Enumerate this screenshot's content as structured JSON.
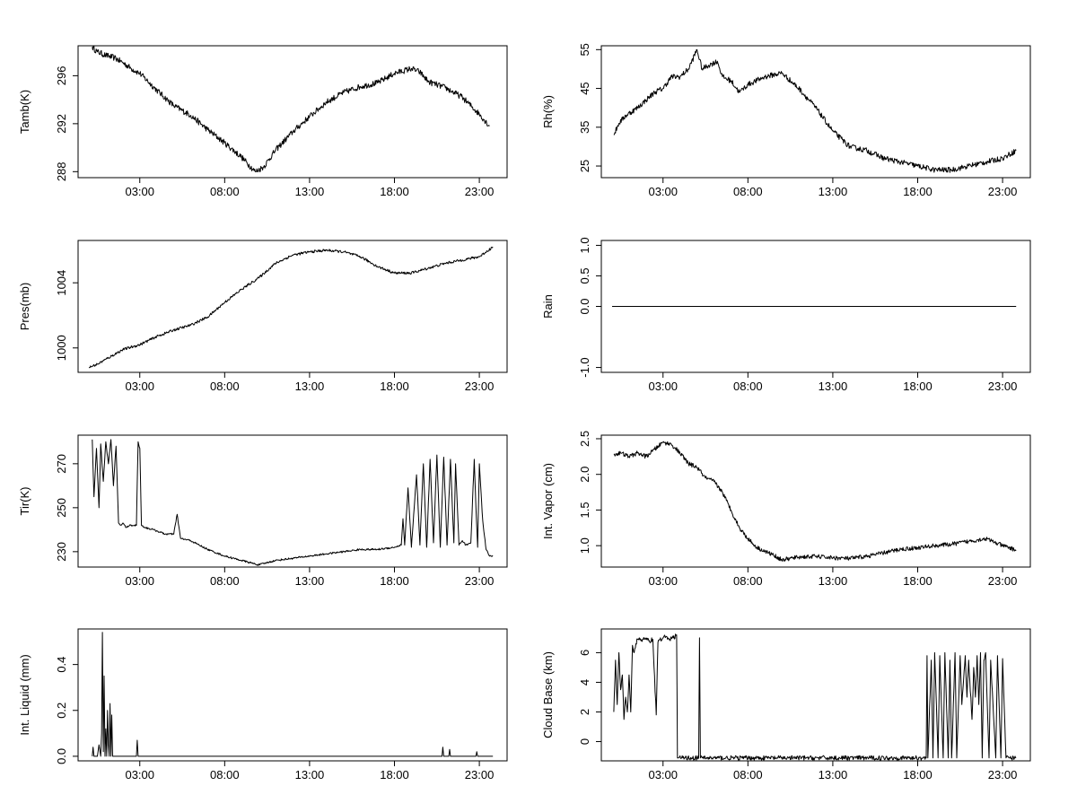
{
  "chart_data": [
    {
      "id": "tamb",
      "type": "line",
      "ylabel": "Tamb(K)",
      "xlabel": "",
      "xlim": [
        0,
        24
      ],
      "ylim": [
        287.5,
        298.5
      ],
      "xticks": [
        3,
        8,
        13,
        18,
        23
      ],
      "xtick_labels": [
        "03:00",
        "08:00",
        "13:00",
        "18:00",
        "23:00"
      ],
      "yticks": [
        288,
        292,
        296
      ],
      "ytick_labels": [
        "288",
        "292",
        "296"
      ],
      "noise": 0.25,
      "series": [
        {
          "name": "Tamb",
          "x": [
            0.2,
            0.5,
            1.0,
            1.5,
            2.0,
            2.5,
            3.0,
            4.0,
            5.0,
            6.0,
            7.0,
            8.0,
            9.0,
            9.8,
            10.3,
            11.0,
            12.0,
            13.0,
            14.0,
            15.0,
            16.0,
            17.0,
            18.0,
            19.0,
            19.5,
            20.0,
            21.0,
            22.0,
            23.0,
            23.6
          ],
          "y": [
            298.4,
            298.0,
            297.7,
            297.5,
            297.1,
            296.6,
            296.2,
            294.8,
            293.5,
            292.7,
            291.5,
            290.4,
            289.2,
            288.0,
            288.4,
            289.8,
            291.3,
            292.6,
            293.8,
            294.6,
            295.1,
            295.4,
            296.2,
            296.6,
            296.3,
            295.5,
            295.0,
            294.2,
            292.8,
            291.8
          ]
        }
      ]
    },
    {
      "id": "rh",
      "type": "line",
      "ylabel": "Rh(%)",
      "xlabel": "",
      "xlim": [
        0,
        24
      ],
      "ylim": [
        22,
        56
      ],
      "xticks": [
        3,
        8,
        13,
        18,
        23
      ],
      "xtick_labels": [
        "03:00",
        "08:00",
        "13:00",
        "18:00",
        "23:00"
      ],
      "yticks": [
        25,
        35,
        45,
        55
      ],
      "ytick_labels": [
        "25",
        "35",
        "45",
        "55"
      ],
      "noise": 0.7,
      "series": [
        {
          "name": "Rh",
          "x": [
            0.1,
            0.4,
            0.8,
            1.5,
            2.0,
            2.5,
            3.0,
            3.5,
            4.0,
            4.5,
            5.0,
            5.3,
            5.7,
            6.2,
            6.5,
            7.0,
            7.5,
            8.0,
            9.0,
            10.0,
            11.0,
            12.0,
            13.0,
            14.0,
            15.0,
            16.0,
            17.0,
            18.0,
            19.0,
            20.0,
            21.0,
            22.0,
            23.0,
            23.8
          ],
          "y": [
            33,
            36,
            38,
            40,
            42,
            44,
            45,
            48,
            48,
            50,
            55,
            50,
            51,
            52,
            48,
            47,
            44,
            46,
            48,
            49,
            45,
            40,
            34,
            30,
            29,
            27,
            26,
            25,
            24,
            24,
            25,
            26,
            27,
            29
          ]
        }
      ]
    },
    {
      "id": "pres",
      "type": "line",
      "ylabel": "Pres(mb)",
      "xlabel": "",
      "xlim": [
        0,
        24
      ],
      "ylim": [
        998.5,
        1006.6
      ],
      "xticks": [
        3,
        8,
        13,
        18,
        23
      ],
      "xtick_labels": [
        "03:00",
        "08:00",
        "13:00",
        "18:00",
        "23:00"
      ],
      "yticks": [
        1000,
        1004
      ],
      "ytick_labels": [
        "1000",
        "1004"
      ],
      "noise": 0.08,
      "series": [
        {
          "name": "Pres",
          "x": [
            0.0,
            0.5,
            1.0,
            2.0,
            3.0,
            4.0,
            5.0,
            6.0,
            7.0,
            8.0,
            9.0,
            10.0,
            11.0,
            12.0,
            13.0,
            14.0,
            15.0,
            16.0,
            17.0,
            18.0,
            19.0,
            20.0,
            21.0,
            22.0,
            23.0,
            23.8
          ],
          "y": [
            998.8,
            999.0,
            999.3,
            999.9,
            1000.2,
            1000.7,
            1001.1,
            1001.4,
            1001.9,
            1002.8,
            1003.6,
            1004.3,
            1005.2,
            1005.7,
            1005.9,
            1006.0,
            1005.9,
            1005.6,
            1005.0,
            1004.6,
            1004.6,
            1004.9,
            1005.2,
            1005.4,
            1005.6,
            1006.2
          ]
        }
      ]
    },
    {
      "id": "rain",
      "type": "line",
      "ylabel": "Rain",
      "xlabel": "",
      "xlim": [
        0,
        24
      ],
      "ylim": [
        -1.08,
        1.08
      ],
      "xticks": [
        3,
        8,
        13,
        18,
        23
      ],
      "xtick_labels": [
        "03:00",
        "08:00",
        "13:00",
        "18:00",
        "23:00"
      ],
      "yticks": [
        -1.0,
        0.0,
        0.5,
        1.0
      ],
      "ytick_labels": [
        "-1.0",
        "0.0",
        "0.5",
        "1.0"
      ],
      "noise": 0,
      "series": [
        {
          "name": "Rain",
          "x": [
            0.0,
            23.8
          ],
          "y": [
            0,
            0
          ]
        }
      ]
    },
    {
      "id": "tir",
      "type": "line",
      "ylabel": "Tir(K)",
      "xlabel": "",
      "xlim": [
        0,
        24
      ],
      "ylim": [
        223,
        283
      ],
      "xticks": [
        3,
        8,
        13,
        18,
        23
      ],
      "xtick_labels": [
        "03:00",
        "08:00",
        "13:00",
        "18:00",
        "23:00"
      ],
      "yticks": [
        230,
        250,
        270
      ],
      "ytick_labels": [
        "230",
        "250",
        "270"
      ],
      "noise": 0.4,
      "series": [
        {
          "name": "Tir",
          "x": [
            0.2,
            0.3,
            0.45,
            0.6,
            0.7,
            0.85,
            1.0,
            1.15,
            1.3,
            1.45,
            1.6,
            1.75,
            1.9,
            2.0,
            2.2,
            2.4,
            2.8,
            2.9,
            3.0,
            3.1,
            3.3,
            3.8,
            4.5,
            5.0,
            5.2,
            5.4,
            6.0,
            7.0,
            8.0,
            9.0,
            10.0,
            11.0,
            12.0,
            13.0,
            14.0,
            15.0,
            16.0,
            17.0,
            18.0,
            18.4,
            18.5,
            18.6,
            18.8,
            19.0,
            19.3,
            19.5,
            19.7,
            19.9,
            20.1,
            20.3,
            20.5,
            20.7,
            20.9,
            21.1,
            21.3,
            21.5,
            21.6,
            21.8,
            22.0,
            22.2,
            22.5,
            22.7,
            22.8,
            22.9,
            23.0,
            23.2,
            23.4,
            23.6,
            23.8
          ],
          "y": [
            281,
            255,
            277,
            250,
            279,
            262,
            280,
            270,
            281,
            260,
            278,
            243,
            242,
            243,
            241,
            242,
            242,
            280,
            277,
            242,
            241,
            240,
            238,
            238,
            247,
            236,
            235,
            231,
            228,
            226,
            224,
            226,
            227,
            228,
            229,
            230,
            231,
            231,
            232,
            233,
            245,
            233,
            259,
            232,
            265,
            233,
            270,
            232,
            272,
            234,
            274,
            232,
            273,
            233,
            272,
            234,
            270,
            233,
            235,
            233,
            234,
            272,
            250,
            232,
            270,
            244,
            231,
            228,
            228
          ]
        }
      ]
    },
    {
      "id": "vapor",
      "type": "line",
      "ylabel": "Int. Vapor (cm)",
      "xlabel": "",
      "xlim": [
        0,
        24
      ],
      "ylim": [
        0.7,
        2.55
      ],
      "xticks": [
        3,
        8,
        13,
        18,
        23
      ],
      "xtick_labels": [
        "03:00",
        "08:00",
        "13:00",
        "18:00",
        "23:00"
      ],
      "yticks": [
        1.0,
        1.5,
        2.0,
        2.5
      ],
      "ytick_labels": [
        "1.0",
        "1.5",
        "2.0",
        "2.5"
      ],
      "noise": 0.03,
      "series": [
        {
          "name": "Int. Vapor",
          "x": [
            0.1,
            0.5,
            1.0,
            1.5,
            2.0,
            2.5,
            3.0,
            3.5,
            4.0,
            4.5,
            5.0,
            5.5,
            6.0,
            6.5,
            7.0,
            7.5,
            8.0,
            8.5,
            9.0,
            9.5,
            10.0,
            11.0,
            12.0,
            13.0,
            14.0,
            15.0,
            16.0,
            17.0,
            18.0,
            19.0,
            20.0,
            21.0,
            22.0,
            23.0,
            23.8
          ],
          "y": [
            2.28,
            2.3,
            2.25,
            2.3,
            2.25,
            2.35,
            2.45,
            2.42,
            2.3,
            2.15,
            2.1,
            1.95,
            1.9,
            1.75,
            1.5,
            1.25,
            1.1,
            0.98,
            0.92,
            0.87,
            0.8,
            0.84,
            0.85,
            0.83,
            0.82,
            0.85,
            0.9,
            0.95,
            0.97,
            1.0,
            1.02,
            1.06,
            1.1,
            1.0,
            0.94
          ]
        }
      ]
    },
    {
      "id": "liquid",
      "type": "line",
      "ylabel": "Int. Liquid (mm)",
      "xlabel": "",
      "xlim": [
        0,
        24
      ],
      "ylim": [
        -0.02,
        0.555
      ],
      "xticks": [
        3,
        8,
        13,
        18,
        23
      ],
      "xtick_labels": [
        "03:00",
        "08:00",
        "13:00",
        "18:00",
        "23:00"
      ],
      "yticks": [
        0.0,
        0.2,
        0.4
      ],
      "ytick_labels": [
        "0.0",
        "0.2",
        "0.4"
      ],
      "noise": 0,
      "series": [
        {
          "name": "Int. Liquid",
          "x": [
            0.2,
            0.25,
            0.3,
            0.35,
            0.5,
            0.6,
            0.7,
            0.75,
            0.8,
            0.85,
            0.9,
            0.95,
            1.0,
            1.05,
            1.1,
            1.15,
            1.2,
            1.25,
            1.3,
            1.35,
            1.4,
            1.45,
            1.5,
            2.8,
            2.85,
            2.9,
            2.95,
            3.0,
            20.8,
            20.85,
            20.9,
            21.2,
            21.25,
            21.3,
            22.8,
            22.85,
            22.9,
            23.8
          ],
          "y": [
            0,
            0.04,
            0,
            0,
            0,
            0.05,
            0,
            0.1,
            0.54,
            0.02,
            0.35,
            0,
            0.12,
            0,
            0.2,
            0.05,
            0,
            0.23,
            0,
            0.18,
            0,
            0,
            0,
            0,
            0.07,
            0,
            0,
            0,
            0,
            0.04,
            0,
            0,
            0.03,
            0,
            0,
            0.02,
            0,
            0
          ]
        }
      ]
    },
    {
      "id": "cloud",
      "type": "line",
      "ylabel": "Cloud Base (km)",
      "xlabel": "",
      "xlim": [
        0,
        24
      ],
      "ylim": [
        -1.3,
        7.6
      ],
      "xticks": [
        3,
        8,
        13,
        18,
        23
      ],
      "xtick_labels": [
        "03:00",
        "08:00",
        "13:00",
        "18:00",
        "23:00"
      ],
      "yticks": [
        0,
        2,
        4,
        6
      ],
      "ytick_labels": [
        "0",
        "2",
        "4",
        "6"
      ],
      "noise": 0.15,
      "series": [
        {
          "name": "Cloud Base",
          "x": [
            0.1,
            0.2,
            0.3,
            0.4,
            0.5,
            0.6,
            0.7,
            0.8,
            0.9,
            1.0,
            1.1,
            1.2,
            1.3,
            1.4,
            1.5,
            1.6,
            1.7,
            1.8,
            2.0,
            2.2,
            2.4,
            2.6,
            2.7,
            2.8,
            2.85,
            2.9,
            3.0,
            3.2,
            3.4,
            3.6,
            3.8,
            3.85,
            3.9,
            5.1,
            5.15,
            5.2,
            5.3,
            18.5,
            18.55,
            18.6,
            18.8,
            18.9,
            19.0,
            19.2,
            19.3,
            19.5,
            19.6,
            19.8,
            19.9,
            20.0,
            20.2,
            20.3,
            20.5,
            20.6,
            20.8,
            20.9,
            21.0,
            21.2,
            21.3,
            21.4,
            21.5,
            21.6,
            21.7,
            21.8,
            21.9,
            22.0,
            22.2,
            22.3,
            22.6,
            22.7,
            22.9,
            23.0,
            23.2,
            23.4,
            23.8
          ],
          "y": [
            2.0,
            5.5,
            2.5,
            6.0,
            3.5,
            4.5,
            1.5,
            3.0,
            2.0,
            4.5,
            2.0,
            6.5,
            6.0,
            6.6,
            6.9,
            7.0,
            6.8,
            6.9,
            6.9,
            6.8,
            6.9,
            1.8,
            6.7,
            6.9,
            7.0,
            6.8,
            7.0,
            7.1,
            6.9,
            7.0,
            7.2,
            -1.1,
            -1.1,
            -1.1,
            7.0,
            -1.1,
            -1.1,
            -1.1,
            5.8,
            -1.1,
            5.5,
            -1.1,
            6.0,
            -1.1,
            5.8,
            -1.1,
            6.0,
            -1.1,
            5.5,
            -1.1,
            6.0,
            -1.1,
            5.8,
            2.5,
            5.8,
            3.0,
            5.5,
            1.5,
            5.0,
            3.0,
            5.8,
            2.5,
            6.0,
            -1.1,
            5.5,
            6.0,
            -1.1,
            5.5,
            -1.1,
            5.8,
            -1.1,
            5.6,
            -1.1,
            -1.1,
            -1.1
          ]
        }
      ]
    }
  ]
}
